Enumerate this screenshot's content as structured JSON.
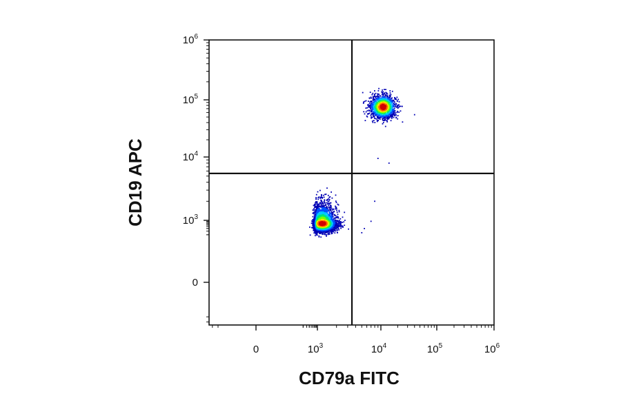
{
  "chart_data": {
    "type": "scatter",
    "title": "",
    "xlabel": "CD79a FITC",
    "ylabel": "CD19 APC",
    "x_scale": "biexponential",
    "y_scale": "biexponential",
    "xlim": [
      -300,
      1000000
    ],
    "ylim": [
      -300,
      1000000
    ],
    "x_ticks": [
      {
        "base": "0",
        "exp": ""
      },
      {
        "base": "10",
        "exp": "3"
      },
      {
        "base": "10",
        "exp": "4"
      },
      {
        "base": "10",
        "exp": "5"
      },
      {
        "base": "10",
        "exp": "6"
      }
    ],
    "y_ticks": [
      {
        "base": "0",
        "exp": ""
      },
      {
        "base": "10",
        "exp": "3"
      },
      {
        "base": "10",
        "exp": "4"
      },
      {
        "base": "10",
        "exp": "5"
      },
      {
        "base": "10",
        "exp": "6"
      }
    ],
    "x_tick_values": [
      0,
      1000,
      10000,
      100000,
      1000000
    ],
    "y_tick_values": [
      0,
      1000,
      10000,
      100000,
      1000000
    ],
    "quadrant_gate": {
      "x": 3500,
      "y": 5500
    },
    "grid": false,
    "legend": "none",
    "color_map": [
      "#0000b4",
      "#0050ff",
      "#00c8ff",
      "#00e678",
      "#78ff00",
      "#ffe600",
      "#ff6400",
      "#d20000"
    ],
    "populations": [
      {
        "center": [
          1200,
          700
        ],
        "spread_x_decades": 0.11,
        "spread_y_decades": 0.2,
        "events": 3600,
        "quadrant": "CD79a- CD19-"
      },
      {
        "center": [
          11000,
          75000
        ],
        "spread_x_decades": 0.11,
        "spread_y_decades": 0.1,
        "events": 1400,
        "quadrant": "CD79a+ CD19+"
      }
    ],
    "outlier_events": [
      [
        8000,
        2000
      ],
      [
        7000,
        900
      ],
      [
        5500,
        400
      ],
      [
        5000,
        250
      ],
      [
        40000,
        55000
      ],
      [
        14000,
        8000
      ],
      [
        9000,
        9500
      ]
    ]
  }
}
